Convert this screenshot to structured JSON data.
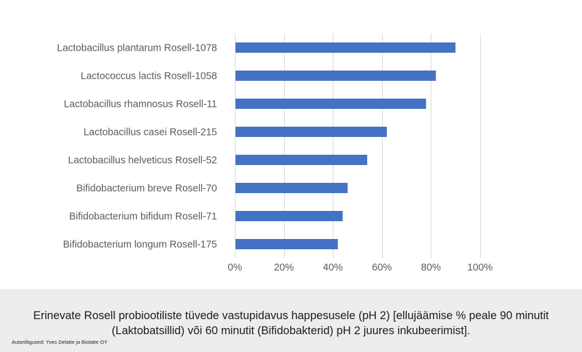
{
  "chart_data": {
    "type": "bar",
    "orientation": "horizontal",
    "categories": [
      "Lactobacillus plantarum Rosell-1078",
      "Lactococcus lactis Rosell-1058",
      "Lactobacillus rhamnosus Rosell-11",
      "Lactobacillus casei Rosell-215",
      "Lactobacillus helveticus Rosell-52",
      "Bifidobacterium breve Rosell-70",
      "Bifidobacterium bifidum Rosell-71",
      "Bifidobacterium longum Rosell-175"
    ],
    "values": [
      90,
      82,
      78,
      62,
      54,
      46,
      44,
      42
    ],
    "xlim": [
      0,
      100
    ],
    "xticks": [
      0,
      20,
      40,
      60,
      80,
      100
    ],
    "xtick_labels": [
      "0%",
      "20%",
      "40%",
      "60%",
      "80%",
      "100%"
    ],
    "grid": true,
    "bar_color": "#4472c4",
    "title": "",
    "xlabel": "",
    "ylabel": ""
  },
  "caption": {
    "text": "Erinevate Rosell probiootiliste tüvede vastupidavus happesusele (pH 2) [ellujäämise % peale 90 minutit (Laktobatsillid) või 60 minutit (Bifidobakterid) pH 2 juures inkubeerimist].",
    "credit": "Autoriõigused: Yves Delatte ja Biolatte OY"
  }
}
